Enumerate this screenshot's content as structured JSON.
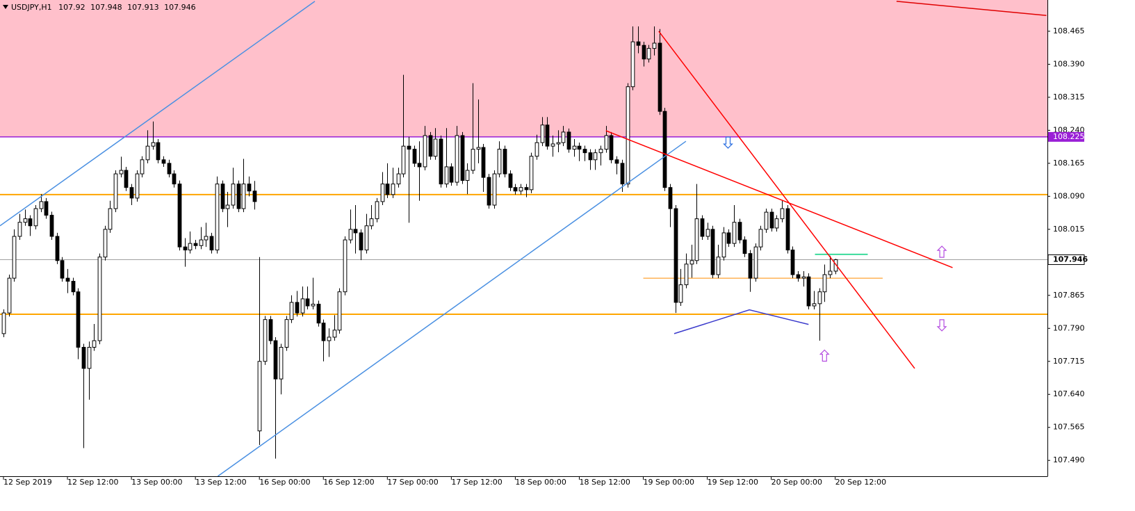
{
  "chart_data": {
    "type": "candlestick",
    "title": "USDJPY,H1",
    "xlim": [
      -0.65,
      195.8
    ],
    "ylim": [
      107.454,
      108.536
    ],
    "xticks": [
      {
        "value": 0,
        "label": "12 Sep 2019"
      },
      {
        "value": 12,
        "label": "12 Sep 12:00"
      },
      {
        "value": 24,
        "label": "13 Sep 00:00"
      },
      {
        "value": 36,
        "label": "13 Sep 12:00"
      },
      {
        "value": 48,
        "label": "16 Sep 00:00"
      },
      {
        "value": 60,
        "label": "16 Sep 12:00"
      },
      {
        "value": 72,
        "label": "17 Sep 00:00"
      },
      {
        "value": 84,
        "label": "17 Sep 12:00"
      },
      {
        "value": 96,
        "label": "18 Sep 00:00"
      },
      {
        "value": 108,
        "label": "18 Sep 12:00"
      },
      {
        "value": 120,
        "label": "19 Sep 00:00"
      },
      {
        "value": 132,
        "label": "19 Sep 12:00"
      },
      {
        "value": 144,
        "label": "20 Sep 00:00"
      },
      {
        "value": 156,
        "label": "20 Sep 12:00"
      }
    ],
    "yticks": [
      108.465,
      {
        "value": 108.39,
        "label": "108.390"
      },
      108.315,
      {
        "value": 108.24,
        "label": "108.240"
      },
      108.165,
      {
        "value": 108.09,
        "label": "108.090"
      },
      108.015,
      {
        "value": 107.94,
        "label": "107.940"
      },
      107.865,
      {
        "value": 107.79,
        "label": "107.790"
      },
      107.715,
      {
        "value": 107.64,
        "label": "107.640"
      },
      107.565,
      {
        "value": 107.49,
        "label": "107.490"
      }
    ],
    "grid": false,
    "bull_color": "#ffffff",
    "bear_color": "#000000",
    "bid_line_color": "#a0a0a0",
    "zone_color": "#ffc0cb",
    "price_level": {
      "value": 108.225,
      "color": "#9a1fd6"
    },
    "series": [
      {
        "open": [
          107.778,
          107.825,
          107.904,
          107.999,
          108.031,
          108.039,
          108.023,
          108.062,
          108.078,
          108.047,
          107.999,
          107.944,
          107.904,
          107.897,
          107.873,
          107.747,
          107.699,
          107.747,
          107.762,
          107.952,
          108.015,
          108.062,
          108.141,
          108.149,
          108.11,
          108.086,
          108.141,
          108.173,
          108.204,
          108.212,
          108.173,
          108.165,
          108.141,
          108.118,
          107.975,
          107.968,
          107.983,
          107.978,
          107.991,
          107.999,
          107.968,
          108.118,
          108.062,
          108.07,
          108.118,
          108.062,
          108.118,
          108.102,
          107.557,
          107.715,
          107.81,
          107.762,
          107.675,
          107.747,
          107.81,
          107.849,
          107.825,
          107.857,
          107.841,
          107.845,
          107.802,
          107.762,
          107.77,
          107.786,
          107.873,
          107.991,
          108.015,
          108.007,
          107.968,
          108.023,
          108.039,
          108.078,
          108.118,
          108.094,
          108.118,
          108.141,
          108.204,
          108.197,
          108.165,
          108.157,
          108.228,
          108.181,
          108.22,
          108.118,
          108.157,
          108.122,
          108.228,
          108.126,
          108.149,
          108.197,
          108.201,
          108.133,
          108.07,
          108.141,
          108.197,
          108.141,
          108.11,
          108.102,
          108.11,
          108.105,
          108.181,
          108.212,
          108.252,
          108.204,
          108.209,
          108.212,
          108.236,
          108.197,
          108.204,
          108.197,
          108.189,
          108.173,
          108.189,
          108.197,
          108.228,
          108.173,
          108.165,
          108.118,
          108.339,
          108.441,
          108.433,
          108.402,
          108.426,
          108.438,
          108.283,
          108.11,
          108.062,
          107.849,
          107.889,
          107.936,
          107.944,
          108.039,
          107.999,
          108.015,
          107.912,
          107.952,
          108.007,
          107.983,
          108.031,
          107.991,
          107.96,
          107.904,
          107.975,
          108.015,
          108.054,
          108.018,
          108.039,
          108.062,
          107.968,
          107.912,
          107.904,
          107.907,
          107.841,
          107.846,
          107.873,
          107.912,
          107.92
        ],
        "high": [
          107.833,
          107.912,
          108.015,
          108.05,
          108.06,
          108.047,
          108.07,
          108.095,
          108.086,
          108.055,
          108.007,
          107.952,
          107.925,
          107.905,
          107.881,
          107.755,
          107.76,
          107.8,
          107.96,
          108.023,
          108.08,
          108.149,
          108.18,
          108.157,
          108.118,
          108.149,
          108.181,
          108.24,
          108.26,
          108.22,
          108.181,
          108.173,
          108.149,
          108.126,
          107.995,
          108.01,
          107.991,
          108.02,
          108.03,
          108.007,
          108.135,
          108.126,
          108.1,
          108.155,
          108.126,
          108.175,
          108.135,
          108.125,
          107.952,
          107.818,
          107.818,
          107.77,
          107.755,
          107.818,
          107.865,
          107.875,
          107.885,
          107.885,
          107.905,
          107.853,
          107.81,
          107.79,
          107.82,
          107.881,
          107.999,
          108.06,
          108.07,
          108.015,
          108.05,
          108.07,
          108.086,
          108.145,
          108.165,
          108.155,
          108.155,
          108.366,
          108.225,
          108.205,
          108.215,
          108.25,
          108.236,
          108.245,
          108.228,
          108.245,
          108.165,
          108.25,
          108.236,
          108.165,
          108.347,
          108.31,
          108.209,
          108.141,
          108.149,
          108.215,
          108.205,
          108.149,
          108.118,
          108.118,
          108.118,
          108.189,
          108.23,
          108.27,
          108.27,
          108.228,
          108.24,
          108.25,
          108.244,
          108.22,
          108.212,
          108.205,
          108.197,
          108.197,
          108.205,
          108.25,
          108.236,
          108.181,
          108.173,
          108.347,
          108.476,
          108.476,
          108.441,
          108.434,
          108.476,
          108.47,
          108.291,
          108.118,
          108.07,
          107.925,
          107.96,
          107.98,
          108.118,
          108.047,
          108.03,
          108.023,
          107.98,
          108.02,
          108.015,
          108.07,
          108.039,
          107.999,
          107.968,
          107.983,
          108.023,
          108.062,
          108.062,
          108.047,
          108.08,
          108.07,
          107.976,
          107.92,
          107.92,
          107.915,
          107.875,
          107.881,
          107.935,
          107.955,
          107.948
        ],
        "low": [
          107.77,
          107.817,
          107.896,
          107.991,
          108.023,
          108.0,
          108.015,
          108.054,
          108.039,
          107.991,
          107.936,
          107.896,
          107.87,
          107.865,
          107.72,
          107.518,
          107.628,
          107.739,
          107.754,
          107.944,
          108.007,
          108.054,
          108.133,
          108.102,
          108.07,
          108.078,
          108.133,
          108.165,
          108.196,
          108.165,
          108.157,
          108.133,
          108.11,
          107.967,
          107.93,
          107.96,
          107.97,
          107.97,
          107.975,
          107.96,
          107.96,
          108.054,
          108.02,
          108.062,
          108.054,
          108.054,
          108.09,
          108.06,
          107.525,
          107.707,
          107.754,
          107.494,
          107.64,
          107.739,
          107.802,
          107.817,
          107.817,
          107.833,
          107.833,
          107.794,
          107.715,
          107.725,
          107.762,
          107.778,
          107.865,
          107.983,
          107.96,
          107.945,
          107.96,
          108.015,
          108.031,
          108.07,
          108.086,
          108.086,
          108.11,
          108.133,
          108.03,
          108.157,
          108.08,
          108.149,
          108.173,
          108.173,
          108.11,
          108.11,
          108.114,
          108.114,
          108.118,
          108.095,
          108.141,
          108.165,
          108.1,
          108.062,
          108.062,
          108.133,
          108.133,
          108.102,
          108.094,
          108.094,
          108.088,
          108.097,
          108.173,
          108.204,
          108.196,
          108.18,
          108.19,
          108.204,
          108.189,
          108.18,
          108.17,
          108.17,
          108.15,
          108.15,
          108.16,
          108.189,
          108.165,
          108.14,
          108.1,
          108.11,
          108.331,
          108.415,
          108.385,
          108.394,
          108.41,
          108.275,
          108.102,
          108.02,
          107.825,
          107.841,
          107.881,
          107.905,
          107.936,
          107.991,
          107.991,
          107.904,
          107.904,
          107.944,
          107.975,
          107.975,
          107.983,
          107.952,
          107.873,
          107.896,
          107.967,
          108.007,
          108.01,
          108.01,
          108.031,
          107.96,
          107.904,
          107.896,
          107.885,
          107.833,
          107.833,
          107.762,
          107.85,
          107.904,
          107.913
        ],
        "close": [
          107.825,
          107.904,
          107.999,
          108.031,
          108.039,
          108.023,
          108.062,
          108.078,
          108.047,
          107.999,
          107.944,
          107.904,
          107.897,
          107.873,
          107.747,
          107.699,
          107.747,
          107.762,
          107.952,
          108.015,
          108.062,
          108.141,
          108.149,
          108.11,
          108.086,
          108.141,
          108.173,
          108.204,
          108.212,
          108.173,
          108.165,
          108.141,
          108.118,
          107.975,
          107.968,
          107.983,
          107.978,
          107.991,
          107.999,
          107.968,
          108.118,
          108.062,
          108.07,
          108.118,
          108.062,
          108.118,
          108.102,
          108.078,
          107.715,
          107.81,
          107.762,
          107.675,
          107.747,
          107.81,
          107.849,
          107.825,
          107.857,
          107.841,
          107.845,
          107.802,
          107.762,
          107.77,
          107.786,
          107.873,
          107.991,
          108.015,
          108.007,
          107.968,
          108.023,
          108.039,
          108.078,
          108.118,
          108.094,
          108.118,
          108.141,
          108.204,
          108.197,
          108.165,
          108.157,
          108.228,
          108.181,
          108.22,
          108.118,
          108.157,
          108.122,
          108.228,
          108.126,
          108.149,
          108.197,
          108.201,
          108.133,
          108.07,
          108.141,
          108.197,
          108.141,
          108.11,
          108.102,
          108.11,
          108.105,
          108.181,
          108.212,
          108.252,
          108.204,
          108.209,
          108.212,
          108.236,
          108.197,
          108.204,
          108.197,
          108.189,
          108.173,
          108.189,
          108.197,
          108.228,
          108.173,
          108.165,
          108.118,
          108.339,
          108.441,
          108.433,
          108.402,
          108.426,
          108.438,
          108.283,
          108.11,
          108.062,
          107.849,
          107.889,
          107.936,
          107.944,
          108.039,
          107.999,
          108.015,
          107.912,
          107.952,
          108.007,
          107.983,
          108.031,
          107.991,
          107.96,
          107.904,
          107.975,
          108.015,
          108.054,
          108.018,
          108.039,
          108.062,
          107.968,
          107.912,
          107.904,
          107.907,
          107.841,
          107.846,
          107.873,
          107.912,
          107.92,
          107.946
        ]
      }
    ],
    "hlines": [
      {
        "value": 108.094,
        "color": "#ffa500",
        "width": 2
      },
      {
        "value": 107.822,
        "color": "#ffa500",
        "width": 2
      },
      {
        "value": 107.904,
        "color": "#ff8c00",
        "width": 1,
        "x": [
          120,
          164.9
        ]
      },
      {
        "value": 107.958,
        "color": "#3cdc9c",
        "width": 2,
        "x": [
          152.2,
          162.1
        ]
      }
    ],
    "trendlines": [
      {
        "x": [
          -0.65,
          58.4
        ],
        "y": [
          108.023,
          108.533
        ],
        "color": "#4a90e2"
      },
      {
        "x": [
          40.2,
          128.0
        ],
        "y": [
          107.454,
          108.215
        ],
        "color": "#4a90e2"
      },
      {
        "x": [
          122.9,
          170.9
        ],
        "y": [
          108.465,
          107.699
        ],
        "color": "#ff0000"
      },
      {
        "x": [
          113.0,
          178.0
        ],
        "y": [
          108.239,
          107.928
        ],
        "color": "#ff0000"
      },
      {
        "x": [
          167.5,
          195.6
        ],
        "y": [
          108.533,
          108.501
        ],
        "color": "#e00000"
      },
      {
        "x": [
          125.8,
          139.9,
          151.0
        ],
        "y": [
          107.778,
          107.832,
          107.799
        ],
        "color": "#3a3acc"
      }
    ],
    "arrows": [
      {
        "x": 135.9,
        "y": 108.212,
        "dir": "down",
        "color": "#2a6ee0"
      },
      {
        "x": 176.0,
        "y": 107.964,
        "dir": "up",
        "color": "#b44ce0"
      },
      {
        "x": 176.0,
        "y": 107.797,
        "dir": "down",
        "color": "#b44ce0"
      },
      {
        "x": 154.0,
        "y": 107.728,
        "dir": "up",
        "color": "#b44ce0"
      }
    ]
  }
}
